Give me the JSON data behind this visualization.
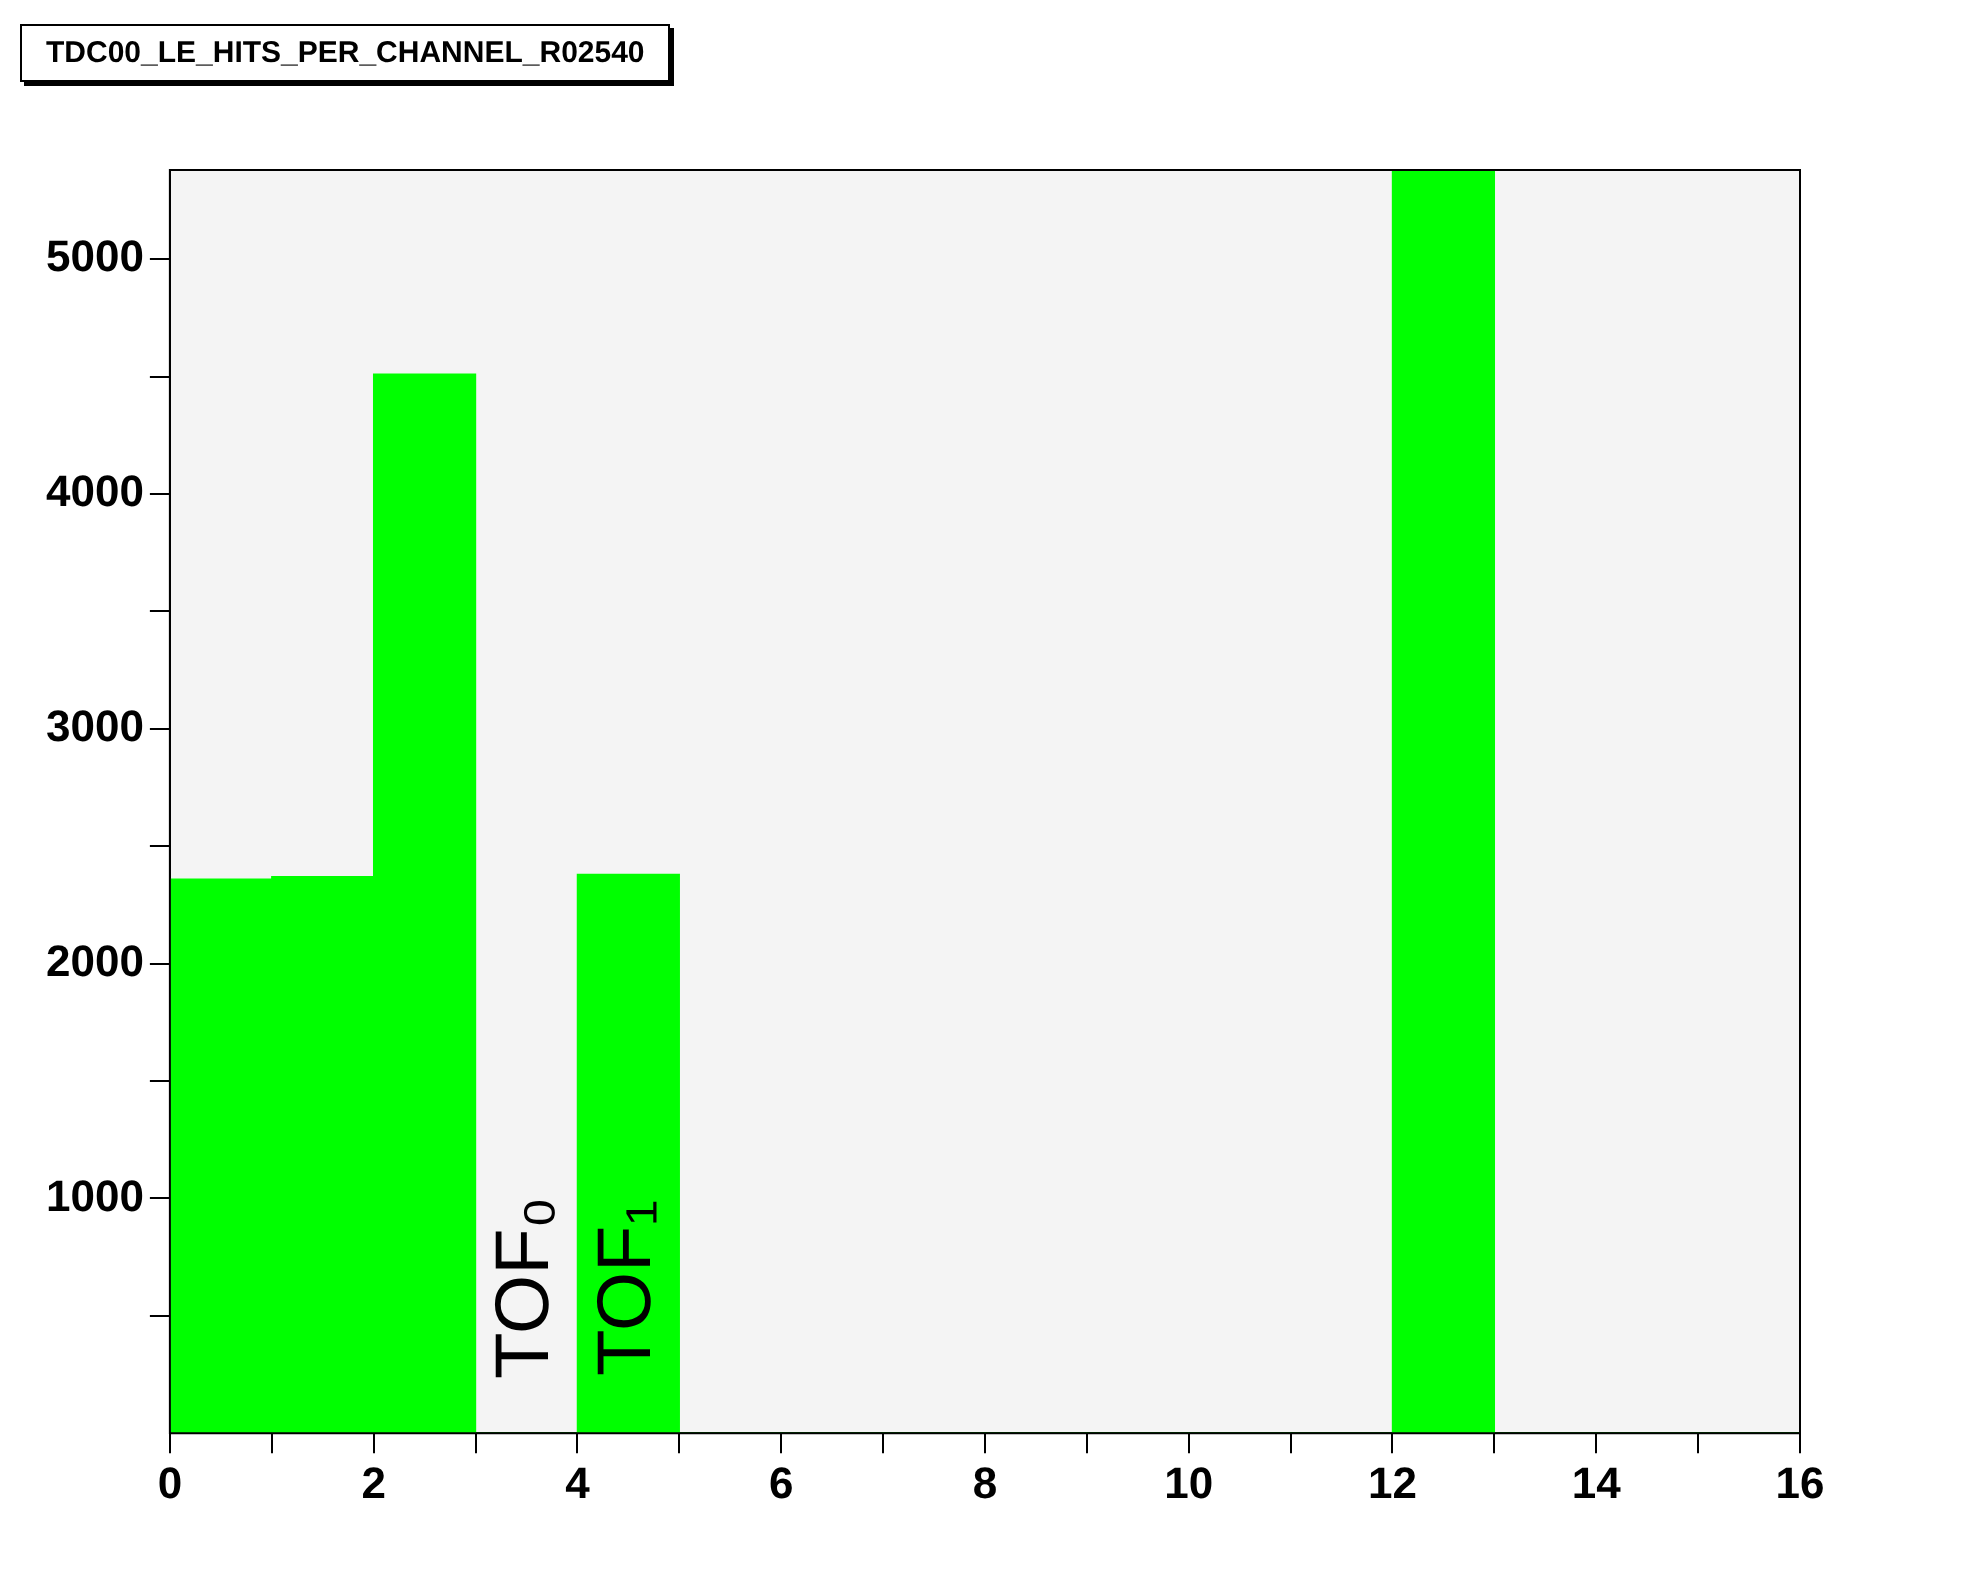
{
  "chart_data": {
    "type": "histogram",
    "title": "TDC00_LE_HITS_PER_CHANNEL_R02540",
    "bins": [
      0,
      1,
      2,
      3,
      4,
      5,
      6,
      7,
      8,
      9,
      10,
      11,
      12,
      13,
      14,
      15,
      16
    ],
    "values": [
      2360,
      2370,
      4510,
      0,
      2380,
      0,
      0,
      0,
      0,
      0,
      0,
      0,
      5380,
      0,
      0,
      0
    ],
    "color": "#00ff00",
    "xlim": [
      0,
      16
    ],
    "xticks": [
      0,
      {
        "value": 1,
        "label": null
      },
      2,
      {
        "value": 3,
        "label": null
      },
      4,
      {
        "value": 5,
        "label": null
      },
      6,
      {
        "value": 7,
        "label": null
      },
      8,
      {
        "value": 9,
        "label": null
      },
      10,
      {
        "value": 11,
        "label": null
      },
      12,
      {
        "value": 13,
        "label": null
      },
      14,
      {
        "value": 15,
        "label": null
      },
      16
    ],
    "ylim": [
      0,
      5380
    ],
    "yticks": [
      {
        "value": 500,
        "label": null
      },
      1000,
      {
        "value": 1500,
        "label": null
      },
      2000,
      {
        "value": 2500,
        "label": null
      },
      3000,
      {
        "value": 3500,
        "label": null
      },
      4000,
      {
        "value": 4500,
        "label": null
      },
      5000
    ],
    "annotations": [
      "TOF₀",
      "TOF₁"
    ],
    "grid": false,
    "legend": false
  }
}
